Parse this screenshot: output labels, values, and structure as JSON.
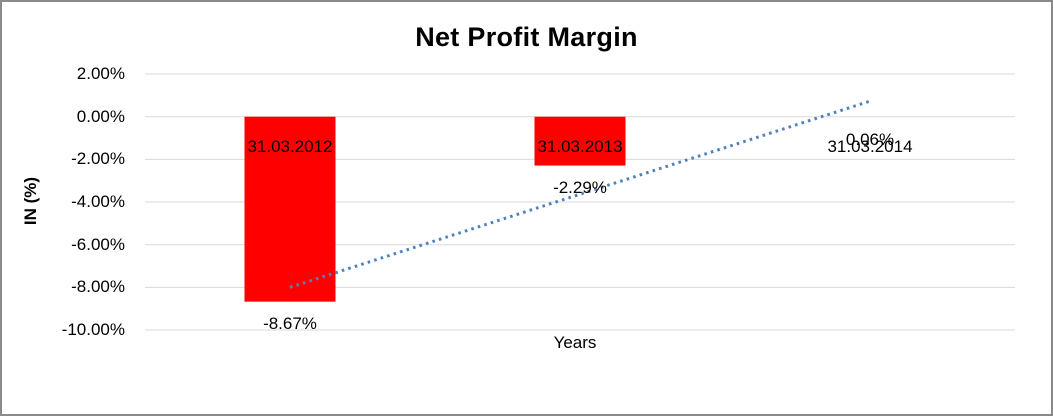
{
  "chart_data": {
    "type": "bar",
    "title": "Net Profit Margin",
    "xlabel": "Years",
    "ylabel": "IN (%)",
    "categories": [
      "31.03.2012",
      "31.03.2013",
      "31.03.2014"
    ],
    "values": [
      -8.67,
      -2.29,
      0.06
    ],
    "data_labels": [
      "-8.67%",
      "-2.29%",
      "0.06%"
    ],
    "yticks": [
      {
        "value": 2,
        "label": "2.00%"
      },
      {
        "value": 0,
        "label": "0.00%"
      },
      {
        "value": -2,
        "label": "-2.00%"
      },
      {
        "value": -4,
        "label": "-4.00%"
      },
      {
        "value": -6,
        "label": "-6.00%"
      },
      {
        "value": -8,
        "label": "-8.00%"
      },
      {
        "value": -10,
        "label": "-10.00%"
      }
    ],
    "ylim": [
      -10,
      2
    ],
    "grid": true,
    "legend": false,
    "trendline": {
      "type": "linear",
      "style": "dotted",
      "start_value": -8.0,
      "end_value": 0.73
    },
    "colors": {
      "bar": "#FF0000",
      "trendline": "#4F81BD",
      "gridline": "#D9D9D9",
      "text": "#000000",
      "border": "#8A8A8A"
    }
  }
}
